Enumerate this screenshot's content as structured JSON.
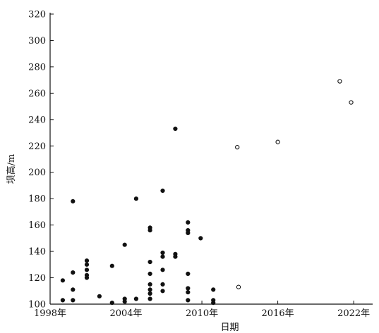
{
  "chart_data": {
    "type": "scatter",
    "xlabel": "日期",
    "ylabel": "坝高/m",
    "xlim": [
      1998,
      2023.5
    ],
    "ylim": [
      100,
      320
    ],
    "xticks": [
      1998,
      2004,
      2010,
      2016,
      2022
    ],
    "xtick_labels": [
      "1998年",
      "2004年",
      "2010年",
      "2016年",
      "2022年"
    ],
    "yticks": [
      100,
      120,
      140,
      160,
      180,
      200,
      220,
      240,
      260,
      280,
      300,
      320
    ],
    "ytick_labels": [
      "100",
      "120",
      "140",
      "160",
      "180",
      "200",
      "220",
      "240",
      "260",
      "280",
      "300",
      "320"
    ],
    "grid": false,
    "series": [
      {
        "marker": "filled",
        "color": "#111111",
        "points": [
          [
            1999.0,
            118
          ],
          [
            1999.0,
            103
          ],
          [
            1999.8,
            178
          ],
          [
            1999.8,
            124
          ],
          [
            1999.8,
            111
          ],
          [
            1999.8,
            103
          ],
          [
            2000.9,
            133
          ],
          [
            2000.9,
            130
          ],
          [
            2000.9,
            126
          ],
          [
            2000.9,
            122
          ],
          [
            2000.9,
            120
          ],
          [
            2001.9,
            106
          ],
          [
            2002.9,
            129
          ],
          [
            2002.9,
            101
          ],
          [
            2003.9,
            145
          ],
          [
            2003.9,
            104
          ],
          [
            2003.9,
            102
          ],
          [
            2004.8,
            180
          ],
          [
            2004.8,
            104
          ],
          [
            2005.9,
            158
          ],
          [
            2005.9,
            156
          ],
          [
            2005.9,
            132
          ],
          [
            2005.9,
            123
          ],
          [
            2005.9,
            115
          ],
          [
            2005.9,
            111
          ],
          [
            2005.9,
            108
          ],
          [
            2005.9,
            104
          ],
          [
            2006.9,
            186
          ],
          [
            2006.9,
            139
          ],
          [
            2006.9,
            136
          ],
          [
            2006.9,
            126
          ],
          [
            2006.9,
            115
          ],
          [
            2006.9,
            110
          ],
          [
            2007.9,
            233
          ],
          [
            2007.9,
            138
          ],
          [
            2007.9,
            136
          ],
          [
            2008.9,
            162
          ],
          [
            2008.9,
            156
          ],
          [
            2008.9,
            154
          ],
          [
            2008.9,
            123
          ],
          [
            2008.9,
            112
          ],
          [
            2008.9,
            109
          ],
          [
            2008.9,
            103
          ],
          [
            2009.9,
            150
          ],
          [
            2010.9,
            111
          ],
          [
            2010.9,
            103
          ],
          [
            2010.9,
            101
          ]
        ]
      },
      {
        "marker": "open",
        "color": "#111111",
        "points": [
          [
            2012.8,
            219
          ],
          [
            2012.9,
            113
          ],
          [
            2016.0,
            223
          ],
          [
            2020.9,
            269
          ],
          [
            2021.8,
            253
          ]
        ]
      }
    ]
  }
}
